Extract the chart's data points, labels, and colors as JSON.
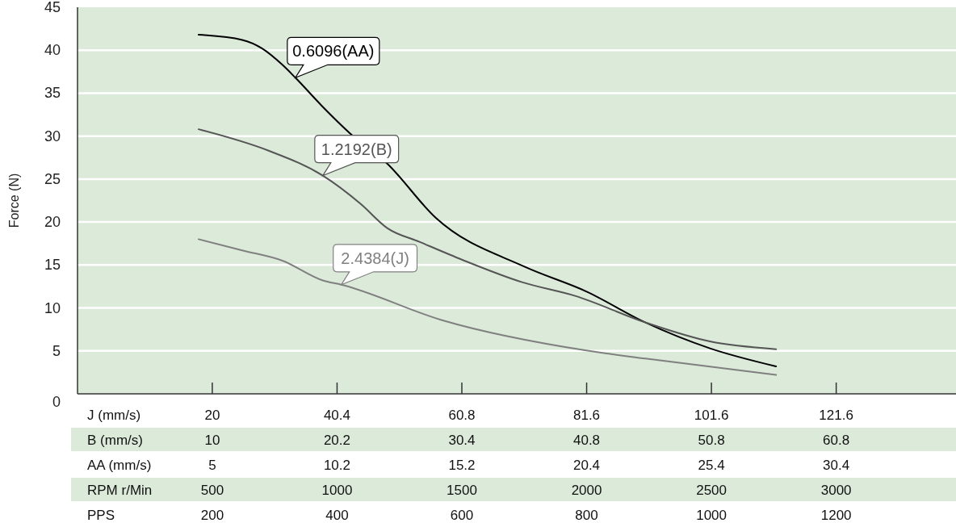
{
  "chart_data": {
    "type": "line",
    "ylabel": "Force (N)",
    "ylim": [
      0,
      45
    ],
    "yticks": [
      0,
      5,
      10,
      15,
      20,
      25,
      30,
      35,
      40,
      45
    ],
    "grid": "y",
    "marker": "none",
    "line_style": "solid",
    "xlabel": "RPM r/Min",
    "xlim": [
      -40,
      3480
    ],
    "xticks": [
      500,
      1000,
      1500,
      2000,
      2500,
      3000
    ],
    "x2label": "PPS",
    "x2lim": [
      -16,
      1392
    ],
    "x2ticks": [
      200,
      400,
      600,
      800,
      1000,
      1200
    ],
    "annotations": [
      "J (mm/s)",
      "20",
      "40.4",
      "60.8",
      "81.6",
      "101.6",
      "121.6",
      "B (mm/s)",
      "10",
      "20.2",
      "30.4",
      "40.8",
      "50.8",
      "60.8",
      "AA (mm/s)",
      "5",
      "10.2",
      "15.2",
      "20.4",
      "25.4",
      "30.4"
    ],
    "series": [
      {
        "name": "0.6096(AA)",
        "color": "#000000",
        "x": [
          445,
          620,
          700,
          781,
          833,
          943,
          1049,
          1201,
          1395,
          1751,
          2000,
          2236,
          2494,
          2759
        ],
        "values": [
          41.8,
          41.2,
          40.2,
          38.3,
          36.8,
          33.4,
          30.4,
          26.8,
          20.5,
          14.8,
          11.9,
          8.3,
          5.3,
          3.2
        ]
      },
      {
        "name": "1.2192(B)",
        "color": "#555555",
        "x": [
          445,
          726,
          943,
          1095,
          1201,
          1330,
          1502,
          1741,
          1954,
          2236,
          2494,
          2759
        ],
        "values": [
          30.8,
          28.3,
          25.4,
          22.1,
          19.3,
          17.7,
          15.6,
          13.0,
          11.4,
          8.3,
          6.1,
          5.2
        ]
      },
      {
        "name": "2.4384(J)",
        "color": "#808080",
        "x": [
          445,
          620,
          781,
          943,
          1017,
          1418,
          2009,
          2236,
          2759
        ],
        "values": [
          18.0,
          16.7,
          15.5,
          13.2,
          12.7,
          8.6,
          5.0,
          4.1,
          2.2
        ]
      }
    ]
  }
}
